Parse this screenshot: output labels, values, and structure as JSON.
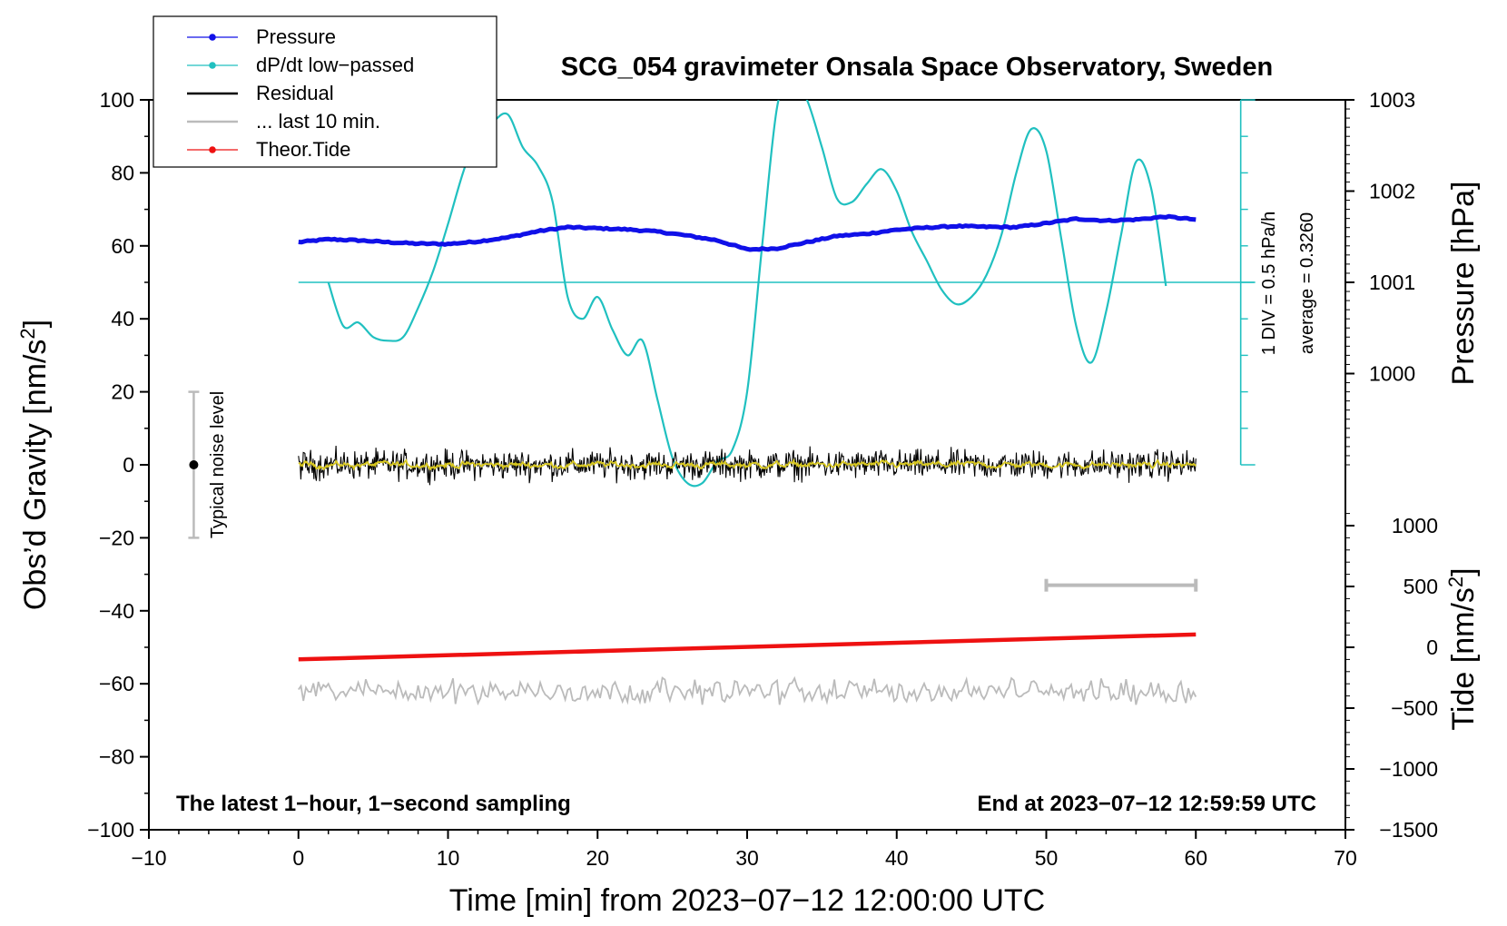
{
  "chart_data": {
    "type": "line",
    "title": "SCG_054 gravimeter Onsala Space Observatory, Sweden",
    "xlabel": "Time [min] from 2023−07−12 12:00:00 UTC",
    "ylabel_left": "Obs’d Gravity [nm/s",
    "ylabel_left_sup": "2",
    "ylabel_left_end": "]",
    "ylabel_right_pressure": "Pressure [hPa]",
    "ylabel_right_tide": "Tide [nm/s",
    "ylabel_right_tide_sup": "2",
    "ylabel_right_tide_end": "]",
    "xlim": [
      -10,
      70
    ],
    "ylim_left": [
      -100,
      100
    ],
    "x_ticks": [
      -10,
      0,
      10,
      20,
      30,
      40,
      50,
      60,
      70
    ],
    "x_tick_labels": [
      "−10",
      "0",
      "10",
      "20",
      "30",
      "40",
      "50",
      "60",
      "70"
    ],
    "y_left_ticks": [
      -100,
      -80,
      -60,
      -40,
      -20,
      0,
      20,
      40,
      60,
      80,
      100
    ],
    "y_left_tick_labels": [
      "−100",
      "−80",
      "−60",
      "−40",
      "−20",
      "0",
      "20",
      "40",
      "60",
      "80",
      "100"
    ],
    "pressure_ticks": [
      1000,
      1001,
      1002,
      1003
    ],
    "pressure_tick_labels": [
      "1000",
      "1001",
      "1002",
      "1003"
    ],
    "pressure_axis": {
      "value_at_left_0": 999.0,
      "value_at_left_100": 1003.0
    },
    "tide_ticks": [
      -1500,
      -1000,
      -500,
      0,
      500,
      1000
    ],
    "tide_tick_labels": [
      "−1500",
      "−1000",
      "−500",
      "0",
      "500",
      "1000"
    ],
    "tide_axis": {
      "value_at_left_neg100": -1500,
      "value_at_left_neg50": 0
    },
    "note_left": "The latest 1−hour, 1−second sampling",
    "note_right": "End at 2023−07−12 12:59:59 UTC",
    "noise_label": "Typical noise level",
    "noise_range": [
      -20,
      20
    ],
    "noise_x": -7,
    "dpdt_scale_label": "1 DIV = 0.5 hPa/h",
    "dpdt_average_label": "average = 0.3260",
    "dpdt_axis_x": 63,
    "dpdt_axis_range": [
      0,
      100
    ],
    "dpdt_zero_level": 50,
    "gray_bar": {
      "x": [
        50,
        60
      ],
      "y": -33
    },
    "legend": [
      {
        "label": "Pressure",
        "color": "#1010e8",
        "marker": true
      },
      {
        "label": "dP/dt low−passed",
        "color": "#20c0c0",
        "marker": true
      },
      {
        "label": "Residual",
        "color": "#000000",
        "marker": false
      },
      {
        "label": "... last 10 min.",
        "color": "#bbbbbb",
        "marker": false
      },
      {
        "label": "Theor.Tide",
        "color": "#ee1111",
        "marker": true
      }
    ],
    "series": [
      {
        "name": "Pressure",
        "color": "#1010e8",
        "x": [
          0,
          2,
          4,
          6,
          8,
          10,
          12,
          14,
          16,
          18,
          20,
          22,
          24,
          26,
          28,
          30,
          32,
          34,
          36,
          38,
          40,
          42,
          44,
          46,
          48,
          50,
          52,
          54,
          56,
          58,
          60
        ],
        "y": [
          61,
          61.8,
          61.5,
          61,
          60.6,
          60.5,
          61.2,
          62.3,
          64,
          65.1,
          64.8,
          64.5,
          63.9,
          62.8,
          61.5,
          59,
          59.3,
          61,
          62.7,
          63.3,
          64.4,
          65,
          65.4,
          65.2,
          65.1,
          66.2,
          67.4,
          66.9,
          67.2,
          68,
          67.2
        ]
      },
      {
        "name": "dP/dt low−passed",
        "color": "#20c0c0",
        "x": [
          2,
          3,
          4,
          5,
          6,
          7,
          8,
          9,
          10,
          11,
          12,
          13,
          14,
          15,
          16,
          17,
          18,
          19,
          20,
          21,
          22,
          23,
          24,
          25,
          26,
          27,
          28,
          29,
          30,
          31,
          32,
          33,
          34,
          35,
          36,
          37,
          38,
          39,
          40,
          41,
          42,
          43,
          44,
          45,
          46,
          47,
          48,
          49,
          50,
          51,
          52,
          53,
          54,
          55,
          56,
          57,
          58
        ],
        "y": [
          50,
          38,
          39,
          35,
          34,
          35,
          43,
          53,
          66,
          80,
          91,
          94,
          96,
          87,
          82,
          72,
          46,
          40,
          46,
          37,
          30,
          34,
          18,
          2,
          -5,
          -5,
          1,
          4,
          20,
          60,
          98,
          106,
          100,
          87,
          73,
          72,
          77,
          81,
          75,
          64,
          56,
          48,
          44,
          46,
          52,
          63,
          80,
          92,
          86,
          62,
          38,
          28,
          42,
          63,
          83,
          76,
          49
        ]
      },
      {
        "name": "Residual",
        "color": "#000000",
        "x_range": [
          0,
          60
        ],
        "level": 0,
        "noise_amplitude": 3
      },
      {
        "name": "Residual (smoothed)",
        "color": "#d8c820",
        "x_range": [
          0,
          60
        ],
        "level": 0
      },
      {
        "name": "... last 10 min.",
        "color": "#bbbbbb",
        "x_range": [
          0,
          60
        ],
        "level": -62,
        "noise_amplitude": 2.5
      },
      {
        "name": "Theor.Tide",
        "color": "#ee1111",
        "x": [
          0,
          60
        ],
        "y": [
          -53.3,
          -46.5
        ]
      }
    ]
  }
}
